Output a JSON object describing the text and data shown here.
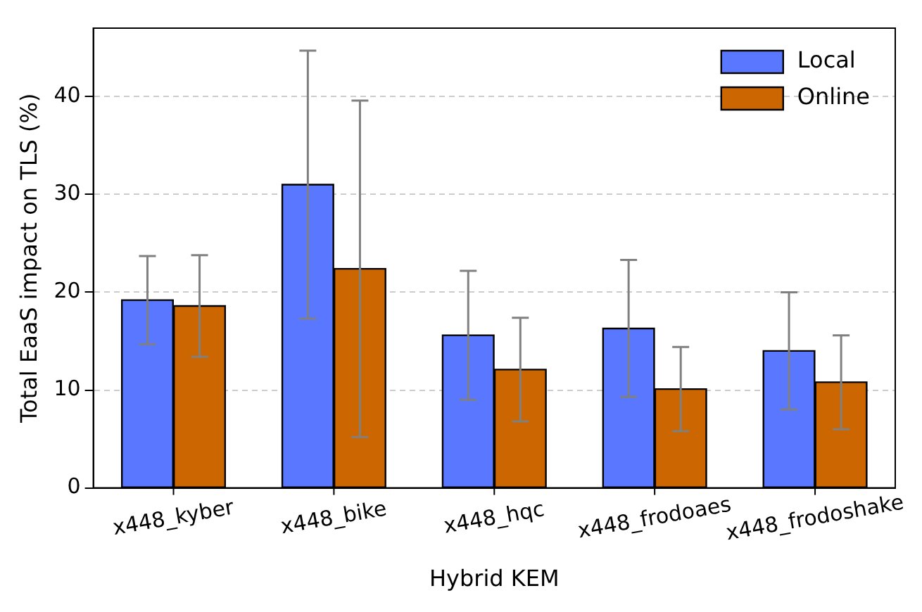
{
  "chart_data": {
    "type": "bar",
    "xlabel": "Hybrid KEM",
    "ylabel": "Total EaaS impact on TLS (%)",
    "categories": [
      "x448_kyber",
      "x448_bike",
      "x448_hqc",
      "x448_frodoaes",
      "x448_frodoshake"
    ],
    "series": [
      {
        "name": "Local",
        "color": "#5a78ff",
        "values": [
          19.2,
          31.0,
          15.6,
          16.3,
          14.0
        ],
        "errors": [
          4.5,
          13.7,
          6.6,
          7.0,
          6.0
        ]
      },
      {
        "name": "Online",
        "color": "#cc6600",
        "values": [
          18.6,
          22.4,
          12.1,
          10.1,
          10.8
        ],
        "errors": [
          5.2,
          17.2,
          5.3,
          4.3,
          4.8
        ]
      }
    ],
    "ylim": [
      0,
      47
    ],
    "yticks": [
      0,
      10,
      20,
      30,
      40
    ],
    "grid": "y",
    "legend": "top right"
  }
}
